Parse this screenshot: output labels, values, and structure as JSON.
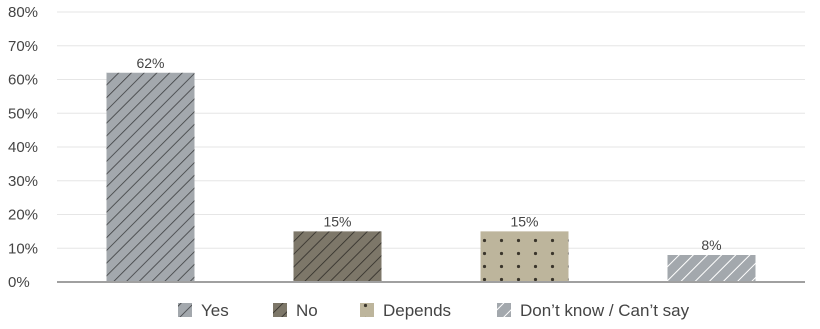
{
  "chart_data": {
    "type": "bar",
    "categories": [
      "Yes",
      "No",
      "Depends",
      "Don’t know / Can’t say"
    ],
    "values": [
      62,
      15,
      15,
      8
    ],
    "data_labels": [
      "62%",
      "15%",
      "15%",
      "8%"
    ],
    "y_ticks": [
      "0%",
      "10%",
      "20%",
      "30%",
      "40%",
      "50%",
      "60%",
      "70%",
      "80%"
    ],
    "ylim": [
      0,
      80
    ],
    "grid": true,
    "legend": "bottom",
    "colors": [
      "#a3a8ad",
      "#7d7769",
      "#bdb59c",
      "#a3a8ad"
    ],
    "patterns": [
      "diagonal-dense",
      "diagonal-dense",
      "dots",
      "diagonal-sparse-light"
    ]
  }
}
